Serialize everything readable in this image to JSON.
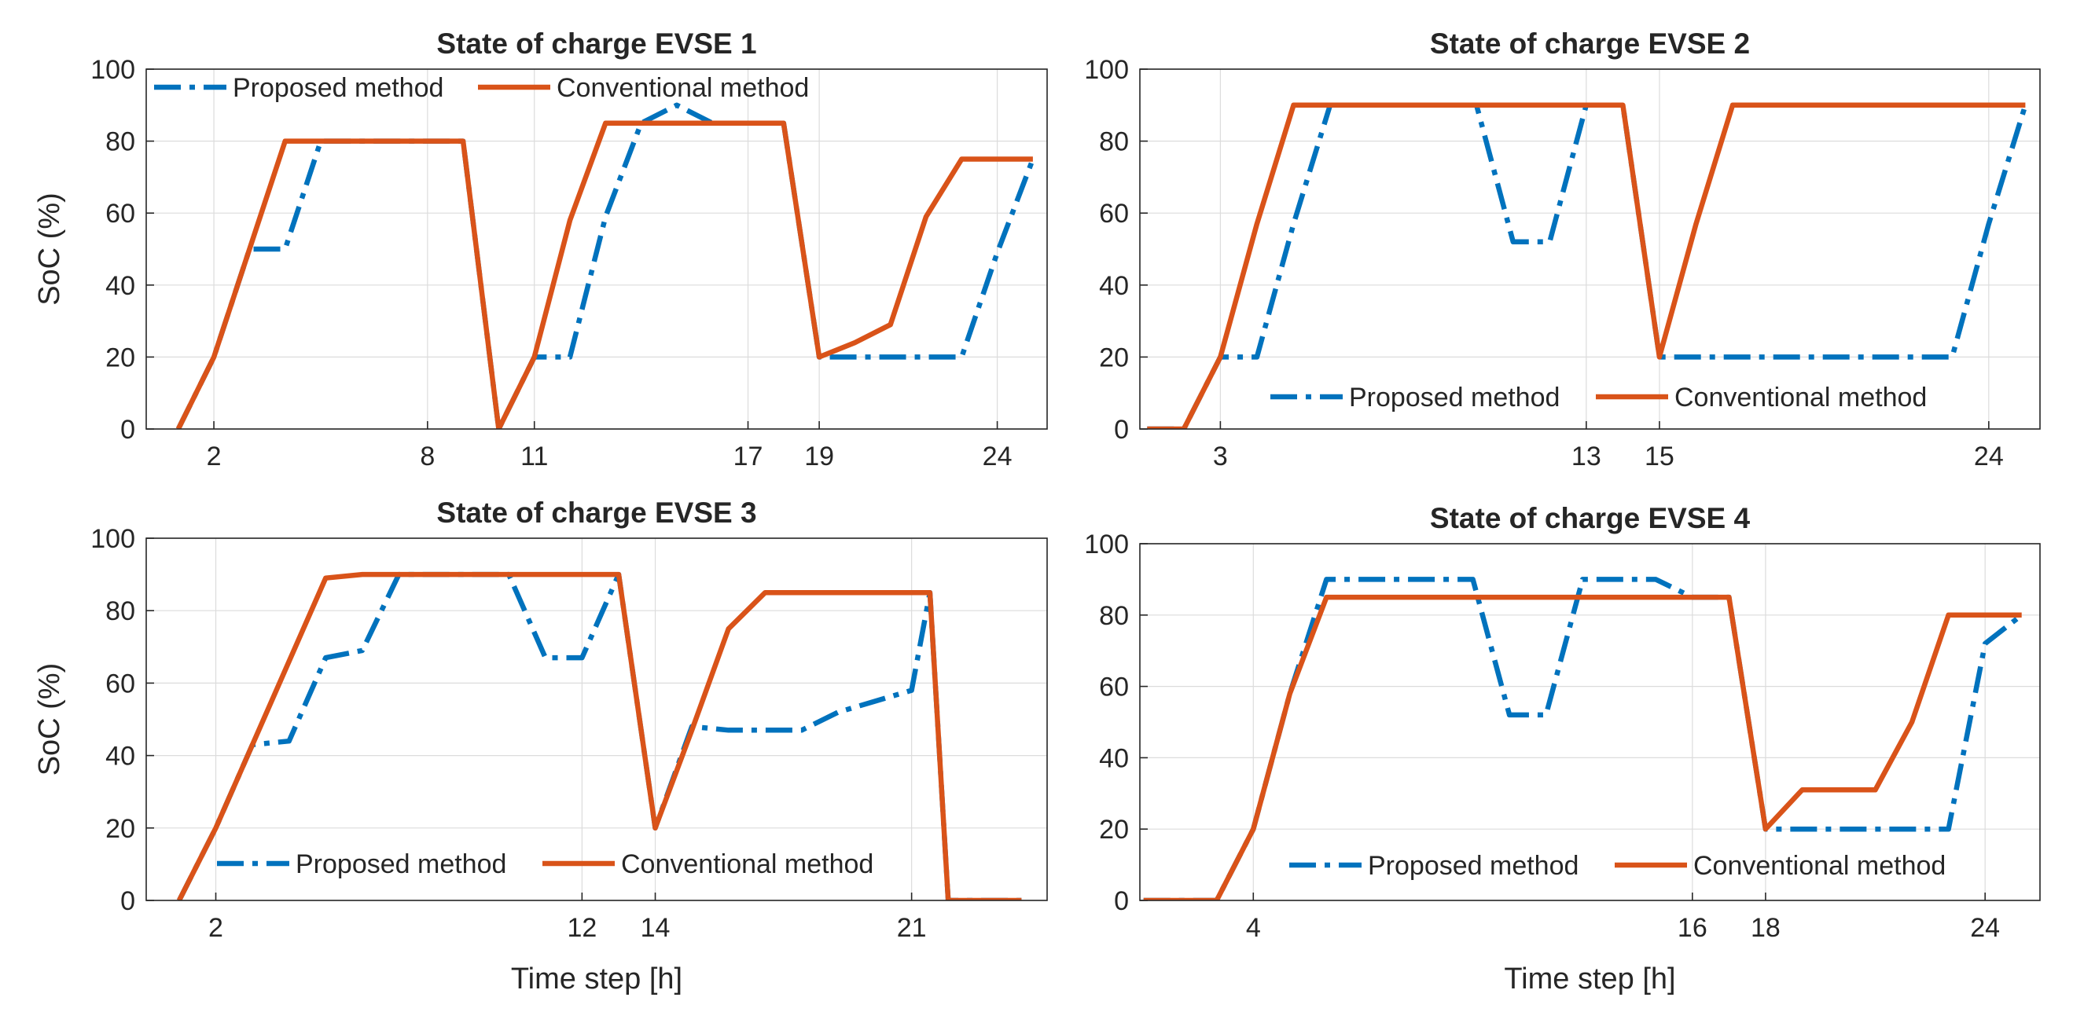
{
  "colors": {
    "proposed": "#0072BD",
    "conventional": "#D95319",
    "axis": "#262626",
    "grid": "#dcdcdc"
  },
  "chart_data": [
    {
      "type": "line",
      "title": "State of charge EVSE 1",
      "xlabel": "",
      "ylabel": "SoC (%)",
      "xlim": [
        0.1,
        25.4
      ],
      "ylim": [
        0,
        100
      ],
      "xticks": [
        2,
        8,
        11,
        17,
        19,
        24
      ],
      "yticks": [
        0,
        20,
        40,
        60,
        80,
        100
      ],
      "grid": true,
      "legend": {
        "position": "top",
        "entries": [
          "Proposed method",
          "Conventional method"
        ]
      },
      "series": [
        {
          "name": "Proposed method",
          "style": "dashdot",
          "x": [
            1,
            2,
            3,
            4,
            5,
            6,
            7,
            8,
            9,
            10,
            11,
            12,
            13,
            14,
            15,
            16,
            17,
            18,
            19,
            20,
            21,
            22,
            23,
            24,
            25
          ],
          "y": [
            0,
            20,
            50,
            50,
            80,
            80,
            80,
            80,
            80,
            0,
            20,
            20,
            59,
            85,
            90,
            85,
            85,
            85,
            20,
            20,
            20,
            20,
            20,
            49,
            75
          ]
        },
        {
          "name": "Conventional method",
          "style": "solid",
          "x": [
            1,
            2,
            3,
            4,
            5,
            6,
            7,
            8,
            9,
            10,
            11,
            12,
            13,
            14,
            15,
            16,
            17,
            18,
            19,
            20,
            21,
            22,
            23,
            24,
            25
          ],
          "y": [
            0,
            20,
            50,
            80,
            80,
            80,
            80,
            80,
            80,
            0,
            20,
            58,
            85,
            85,
            85,
            85,
            85,
            85,
            20,
            24,
            29,
            59,
            75,
            75,
            75
          ]
        }
      ]
    },
    {
      "type": "line",
      "title": "State of charge EVSE 2",
      "xlabel": "",
      "ylabel": "",
      "xlim": [
        0.8,
        25.4
      ],
      "ylim": [
        0,
        100
      ],
      "xticks": [
        3,
        13,
        15,
        24
      ],
      "yticks": [
        0,
        20,
        40,
        60,
        80,
        100
      ],
      "grid": true,
      "legend": {
        "position": "bottom",
        "entries": [
          "Proposed method",
          "Conventional method"
        ]
      },
      "series": [
        {
          "name": "Proposed method",
          "style": "dashdot",
          "x": [
            1,
            2,
            3,
            4,
            5,
            6,
            7,
            8,
            9,
            10,
            11,
            12,
            13,
            14,
            15,
            16,
            17,
            18,
            19,
            20,
            21,
            22,
            23,
            24,
            25
          ],
          "y": [
            0,
            0,
            20,
            20,
            57,
            90,
            90,
            90,
            90,
            90,
            52,
            52,
            90,
            90,
            20,
            20,
            20,
            20,
            20,
            20,
            20,
            20,
            20,
            57,
            90
          ]
        },
        {
          "name": "Conventional method",
          "style": "solid",
          "x": [
            1,
            2,
            3,
            4,
            5,
            6,
            7,
            8,
            9,
            10,
            11,
            12,
            13,
            14,
            15,
            16,
            17,
            18,
            19,
            20,
            21,
            22,
            23,
            24,
            25
          ],
          "y": [
            0,
            0,
            20,
            57,
            90,
            90,
            90,
            90,
            90,
            90,
            90,
            90,
            90,
            90,
            20,
            57,
            90,
            90,
            90,
            90,
            90,
            90,
            90,
            90,
            90
          ]
        }
      ]
    },
    {
      "type": "line",
      "title": "State of charge EVSE 3",
      "xlabel": "Time step [h]",
      "ylabel": "SoC (%)",
      "xlim": [
        0.1,
        24.7
      ],
      "ylim": [
        0,
        100
      ],
      "xticks": [
        2,
        12,
        14,
        21
      ],
      "yticks": [
        0,
        20,
        40,
        60,
        80,
        100
      ],
      "grid": true,
      "legend": {
        "position": "bottom",
        "entries": [
          "Proposed method",
          "Conventional method"
        ]
      },
      "series": [
        {
          "name": "Proposed method",
          "style": "dashdot",
          "x": [
            1,
            2,
            3,
            4,
            5,
            6,
            7,
            8,
            9,
            10,
            11,
            12,
            13,
            14,
            15,
            16,
            17,
            18,
            19,
            20,
            21,
            21.5,
            22,
            23,
            24
          ],
          "y": [
            0,
            20,
            43,
            44,
            67,
            69,
            90,
            90,
            90,
            90,
            67,
            67,
            90,
            20,
            48,
            47,
            47,
            47,
            52,
            55,
            58,
            85,
            0,
            0,
            0
          ]
        },
        {
          "name": "Conventional method",
          "style": "solid",
          "x": [
            1,
            2,
            3,
            4,
            5,
            6,
            7,
            8,
            9,
            10,
            11,
            12,
            13,
            14,
            15,
            16,
            17,
            18,
            19,
            20,
            21,
            21.5,
            22,
            23,
            24
          ],
          "y": [
            0,
            20,
            43,
            66,
            89,
            90,
            90,
            90,
            90,
            90,
            90,
            90,
            90,
            20,
            47,
            75,
            85,
            85,
            85,
            85,
            85,
            85,
            0,
            0,
            0
          ]
        }
      ]
    },
    {
      "type": "line",
      "title": "State of charge EVSE 4",
      "xlabel": "Time step [h]",
      "ylabel": "",
      "xlim": [
        0.9,
        25.5
      ],
      "ylim": [
        0,
        100
      ],
      "xticks": [
        4,
        16,
        18,
        24
      ],
      "yticks": [
        0,
        20,
        40,
        60,
        80,
        100
      ],
      "grid": true,
      "legend": {
        "position": "bottom",
        "entries": [
          "Proposed method",
          "Conventional method"
        ]
      },
      "series": [
        {
          "name": "Proposed method",
          "style": "dashdot",
          "x": [
            1,
            2,
            3,
            4,
            5,
            6,
            7,
            8,
            9,
            10,
            11,
            12,
            13,
            14,
            15,
            16,
            17,
            18,
            19,
            20,
            21,
            22,
            23,
            24,
            25
          ],
          "y": [
            0,
            0,
            0,
            20,
            58,
            90,
            90,
            90,
            90,
            90,
            52,
            52,
            90,
            90,
            90,
            85,
            85,
            20,
            20,
            20,
            20,
            20,
            20,
            72,
            80
          ]
        },
        {
          "name": "Conventional method",
          "style": "solid",
          "x": [
            1,
            2,
            3,
            4,
            5,
            6,
            7,
            8,
            9,
            10,
            11,
            12,
            13,
            14,
            15,
            16,
            17,
            18,
            19,
            20,
            21,
            22,
            23,
            24,
            25
          ],
          "y": [
            0,
            0,
            0,
            20,
            58,
            85,
            85,
            85,
            85,
            85,
            85,
            85,
            85,
            85,
            85,
            85,
            85,
            20,
            31,
            31,
            31,
            50,
            80,
            80,
            80
          ]
        }
      ]
    }
  ]
}
